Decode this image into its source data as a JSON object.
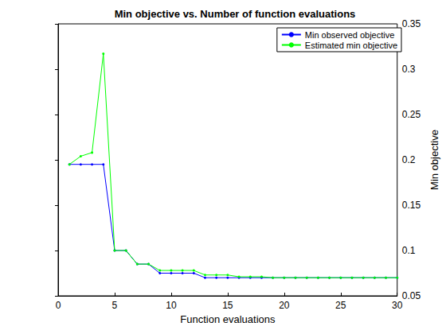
{
  "chart_data": {
    "type": "line",
    "title": "Min objective vs. Number of function evaluations",
    "x_label": "Function evaluations",
    "y_label": "Min objective",
    "x": [
      1,
      2,
      3,
      4,
      5,
      6,
      7,
      8,
      9,
      10,
      11,
      12,
      13,
      14,
      15,
      16,
      17,
      18,
      19,
      20,
      21,
      22,
      23,
      24,
      25,
      26,
      27,
      28,
      29,
      30
    ],
    "series": [
      {
        "name": "Min observed objective",
        "color": "#0000ff",
        "marker": "point",
        "line_style": "solid",
        "values": [
          0.195,
          0.195,
          0.195,
          0.195,
          0.1,
          0.1,
          0.085,
          0.085,
          0.075,
          0.075,
          0.075,
          0.075,
          0.07,
          0.07,
          0.07,
          0.07,
          0.07,
          0.07,
          0.07,
          0.07,
          0.07,
          0.07,
          0.07,
          0.07,
          0.07,
          0.07,
          0.07,
          0.07,
          0.07,
          0.07
        ]
      },
      {
        "name": "Estimated min objective",
        "color": "#00ff00",
        "marker": "point",
        "line_style": "solid",
        "values": [
          0.195,
          0.204,
          0.208,
          0.317,
          0.1,
          0.1,
          0.085,
          0.085,
          0.078,
          0.078,
          0.078,
          0.078,
          0.073,
          0.073,
          0.073,
          0.071,
          0.071,
          0.071,
          0.07,
          0.07,
          0.07,
          0.07,
          0.07,
          0.07,
          0.07,
          0.07,
          0.07,
          0.07,
          0.07,
          0.07
        ]
      }
    ],
    "xlim": [
      0,
      30
    ],
    "xticks": [
      0,
      5,
      10,
      15,
      20,
      25,
      30
    ],
    "ylim": [
      0.05,
      0.35
    ],
    "yticks": [
      0.05,
      0.1,
      0.15,
      0.2,
      0.25,
      0.3,
      0.35
    ],
    "grid": false,
    "legend": "northeast"
  }
}
